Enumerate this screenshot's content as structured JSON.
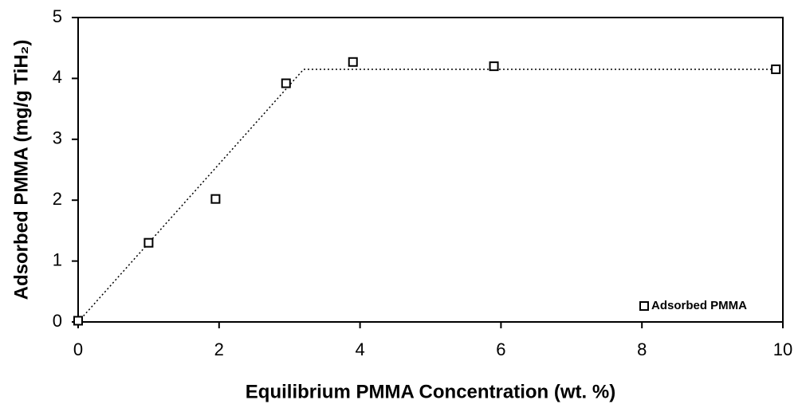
{
  "chart_data": {
    "type": "scatter",
    "x_label": "Equilibrium PMMA Concentration (wt. %)",
    "y_label": "Adsorbed PMMA (mg/g TiH₂)",
    "series": [
      {
        "name": "Adsorbed PMMA",
        "color": "#000000",
        "x": [
          0,
          1,
          1.95,
          2.95,
          3.9,
          5.9,
          9.9
        ],
        "values": [
          0.02,
          1.3,
          2.02,
          3.92,
          4.27,
          4.2,
          4.15
        ]
      }
    ],
    "trend_line": {
      "x": [
        0,
        3.2,
        10
      ],
      "values": [
        0,
        4.15,
        4.15
      ]
    },
    "xlim": [
      0,
      10
    ],
    "xticks": [
      0,
      2,
      4,
      6,
      8,
      10
    ],
    "ylim": [
      0,
      5
    ],
    "yticks": [
      0,
      1,
      2,
      3,
      4,
      5
    ],
    "legend": "lower right",
    "grid": false
  }
}
